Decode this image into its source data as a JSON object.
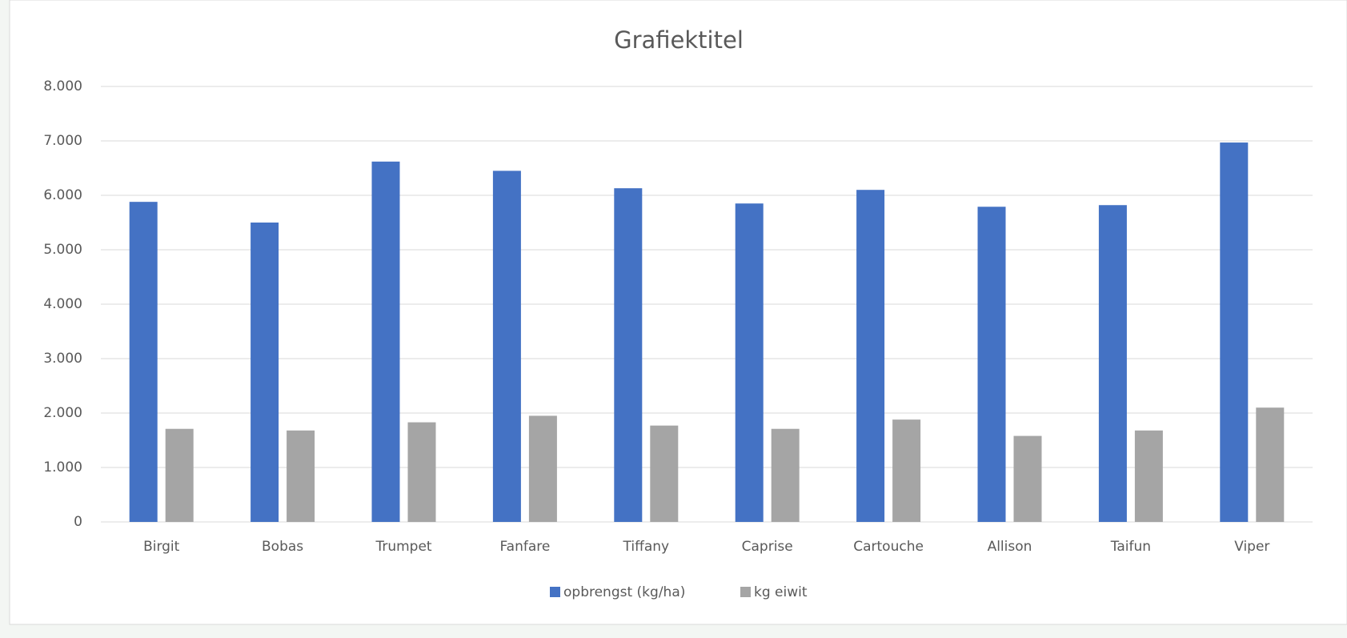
{
  "chart_data": {
    "type": "bar",
    "title": "Grafiektitel",
    "categories": [
      "Birgit",
      "Bobas",
      "Trumpet",
      "Fanfare",
      "Tiffany",
      "Caprise",
      "Cartouche",
      "Allison",
      "Taifun",
      "Viper"
    ],
    "series": [
      {
        "name": "opbrengst (kg/ha)",
        "color": "#4472c4",
        "values": [
          5880,
          5500,
          6620,
          6450,
          6130,
          5850,
          6100,
          5790,
          5820,
          6970
        ]
      },
      {
        "name": "kg eiwit",
        "color": "#a5a5a5",
        "values": [
          1710,
          1680,
          1830,
          1950,
          1770,
          1710,
          1880,
          1580,
          1680,
          2100
        ]
      }
    ],
    "ylim": [
      0,
      8000
    ],
    "yticks": [
      0,
      {
        "value": 1000,
        "label": "1.000"
      },
      {
        "value": 2000,
        "label": "2.000"
      },
      {
        "value": 3000,
        "label": "3.000"
      },
      {
        "value": 4000,
        "label": "4.000"
      },
      {
        "value": 5000,
        "label": "5.000"
      },
      {
        "value": 6000,
        "label": "6.000"
      },
      {
        "value": 7000,
        "label": "7.000"
      },
      {
        "value": 8000,
        "label": "8.000"
      }
    ],
    "grid": true,
    "legend": "bottom"
  }
}
